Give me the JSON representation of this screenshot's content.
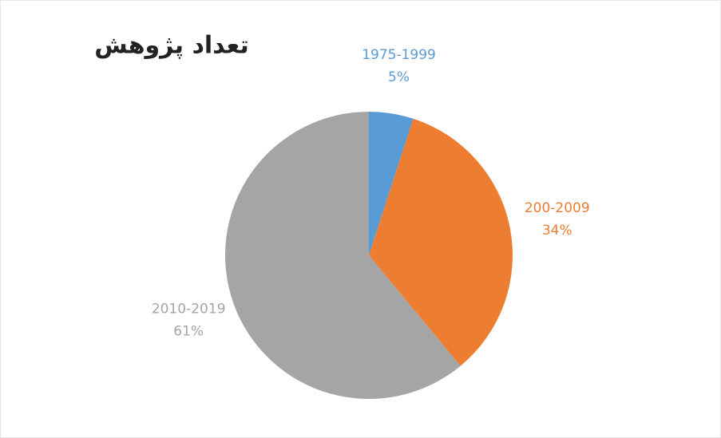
{
  "chart_data": {
    "type": "pie",
    "title": "تعداد پژوهش",
    "categories": [
      "1975-1999",
      "200-2009",
      "2010-2019"
    ],
    "values": [
      5,
      34,
      61
    ],
    "value_labels": [
      "5%",
      "34%",
      "61%"
    ],
    "colors": [
      "#5b9bd5",
      "#ed7d31",
      "#a5a5a5"
    ]
  }
}
